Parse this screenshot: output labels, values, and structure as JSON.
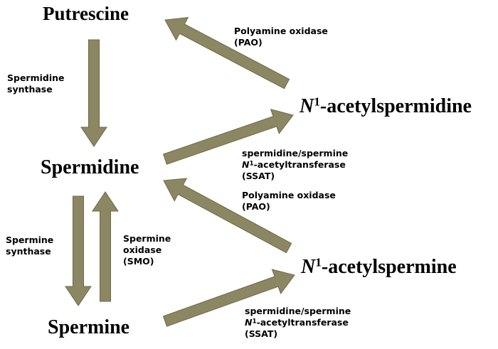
{
  "colors": {
    "arrow_fill": "#8c8763",
    "arrow_stroke": "#6d684a",
    "text": "#000000"
  },
  "compounds": {
    "putrescine": "Putrescine",
    "spermidine": "Spermidine",
    "spermine": "Spermine",
    "acetylspermidine": {
      "prefix": "N",
      "superscript": "1",
      "suffix": "-acetylspermidine"
    },
    "acetylspermine": {
      "prefix": "N",
      "superscript": "1",
      "suffix": "-acetylspermine"
    }
  },
  "enzymes": {
    "spermidine_synthase": {
      "line1": "Spermidine",
      "line2": "synthase"
    },
    "pao_top": {
      "line1": "Polyamine oxidase",
      "line2": "(PAO)"
    },
    "ssat_top": {
      "line1": "spermidine/spermine",
      "line2_prefix": "N",
      "line2_sup": "1",
      "line2_suffix": "-acetyltransferase",
      "line3": "(SSAT)"
    },
    "pao_middle": {
      "line1": "Polyamine oxidase",
      "line2": "(PAO)"
    },
    "spermine_synthase": {
      "line1": "Spermine",
      "line2": "synthase"
    },
    "smo": {
      "line1": "Spermine",
      "line2": "oxidase",
      "line3": "(SMO)"
    },
    "ssat_bottom": {
      "line1": "spermidine/spermine",
      "line2_prefix": "N",
      "line2_sup": "1",
      "line2_suffix": "-acetyltransferase",
      "line3": "(SSAT)"
    }
  }
}
